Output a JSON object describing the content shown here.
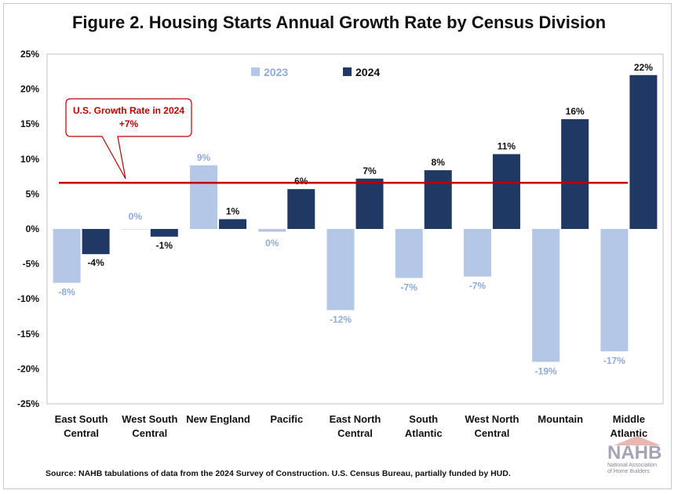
{
  "page": {
    "title": "Figure 2. Housing Starts Annual Growth Rate by Census Division",
    "source": "Source: NAHB tabulations of data from the 2024 Survey of Construction. U.S. Census Bureau, partially funded by HUD.",
    "logo": {
      "word": "NAHB",
      "sub1": "National Association",
      "sub2": "of Home Builders"
    }
  },
  "chart_data": {
    "type": "bar",
    "title": "Figure 2. Housing Starts Annual Growth Rate by Census Division",
    "xlabel": "",
    "ylabel": "",
    "ylim": [
      -25,
      25
    ],
    "yticks": [
      25,
      20,
      15,
      10,
      5,
      0,
      -5,
      -10,
      -15,
      -20,
      -25
    ],
    "ytick_labels": [
      "25%",
      "20%",
      "15%",
      "10%",
      "5%",
      "0%",
      "-5%",
      "-10%",
      "-15%",
      "-20%",
      "-25%"
    ],
    "grid": false,
    "legend_position": "top",
    "categories": [
      [
        "East South",
        "Central"
      ],
      [
        "West South",
        "Central"
      ],
      [
        "New England"
      ],
      [
        "Pacific"
      ],
      [
        "East North",
        "Central"
      ],
      [
        "South",
        "Atlantic"
      ],
      [
        "West North",
        "Central"
      ],
      [
        "Mountain"
      ],
      [
        "Middle",
        "Atlantic"
      ]
    ],
    "series": [
      {
        "name": "2023",
        "color": "#b4c7e7",
        "label_color": "#8faadc",
        "values": [
          -7.7,
          0,
          9.1,
          -0.4,
          -11.6,
          -7.0,
          -6.8,
          -19.0,
          -17.5
        ],
        "labels": [
          "-8%",
          "0%",
          "9%",
          "0%",
          "-12%",
          "-7%",
          "-7%",
          "-19%",
          "-17%"
        ]
      },
      {
        "name": "2024",
        "color": "#203864",
        "label_color": "#111111",
        "values": [
          -3.6,
          -1.1,
          1.4,
          5.7,
          7.2,
          8.4,
          10.7,
          15.7,
          22.0
        ],
        "labels": [
          "-4%",
          "-1%",
          "1%",
          "6%",
          "7%",
          "8%",
          "11%",
          "16%",
          "22%"
        ]
      }
    ],
    "reference_line": {
      "value": 6.6,
      "color": "#c00000",
      "callout_line1": "U.S. Growth Rate in 2024",
      "callout_line2": "+7%"
    }
  }
}
